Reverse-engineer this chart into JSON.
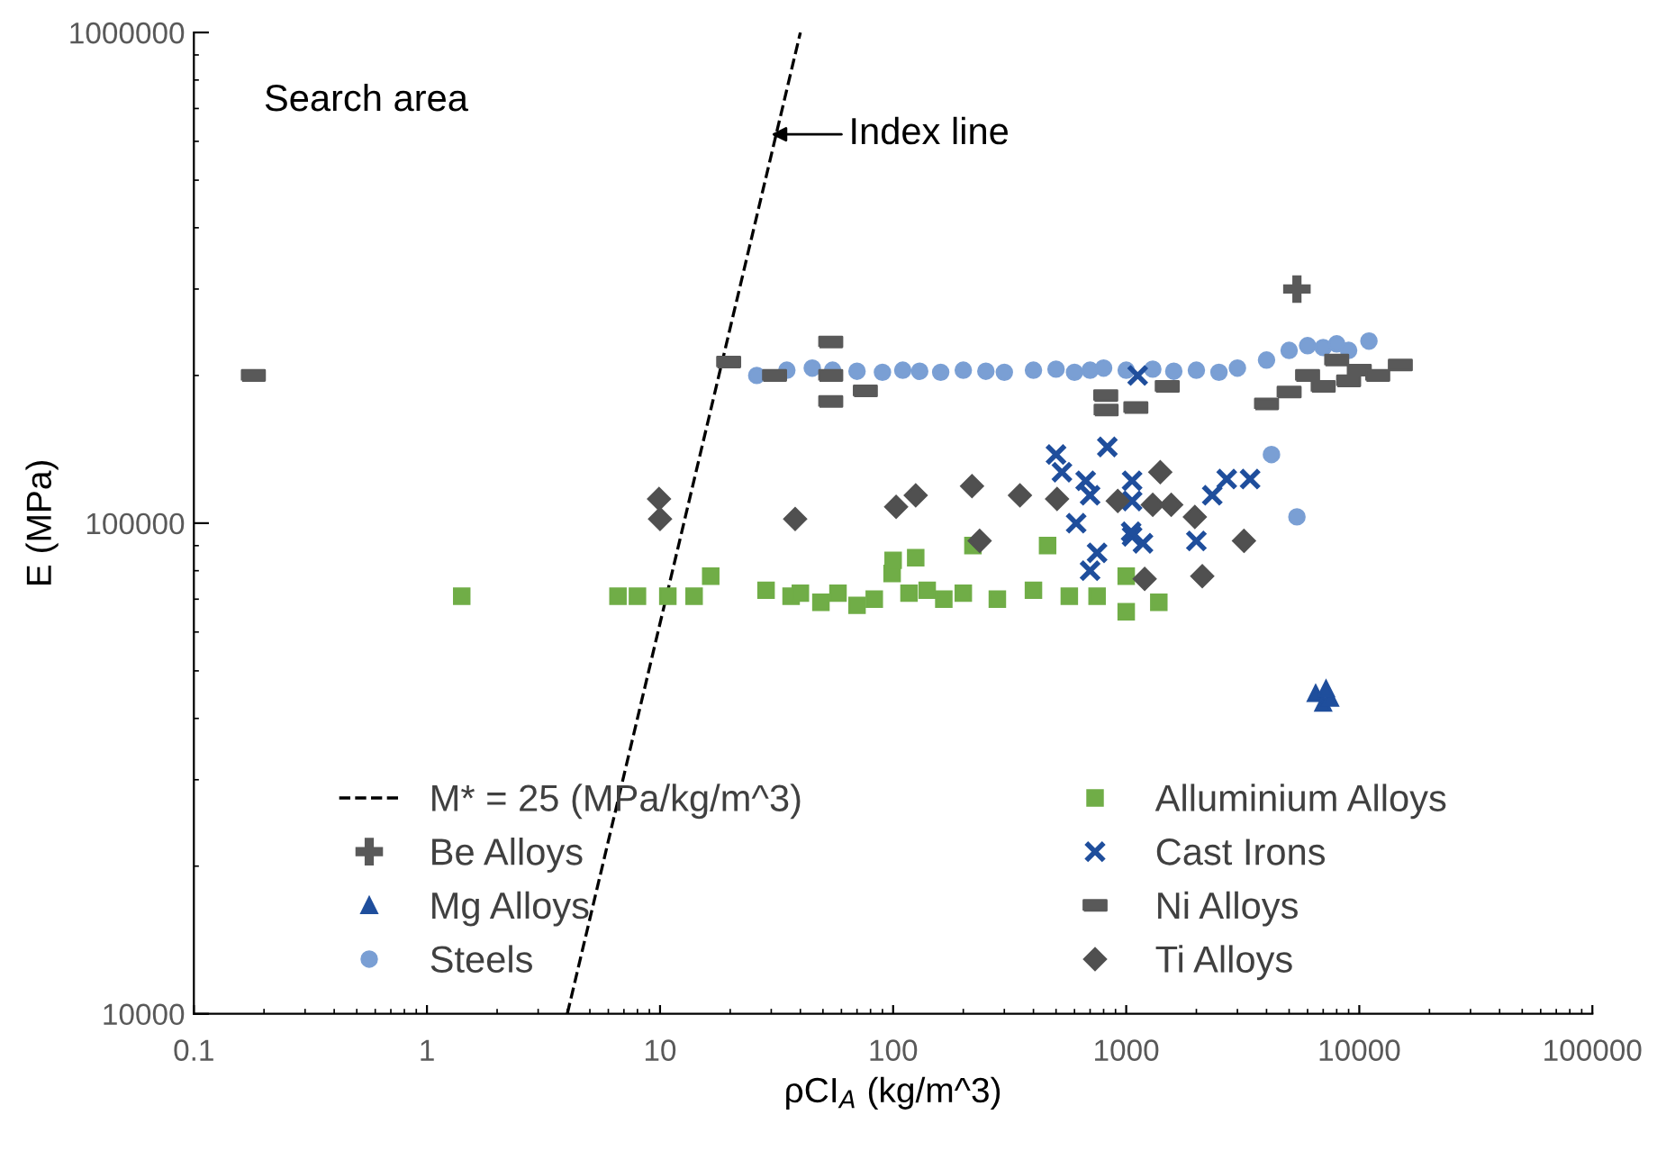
{
  "chart_data": {
    "type": "scatter",
    "xlabel": "ρCI$_{A}$ (kg/m^3)",
    "ylabel": "E (MPa)",
    "log": "xy",
    "xlim": [
      0.1,
      100000
    ],
    "ylim": [
      10000,
      1000000
    ],
    "xticks": [
      0.1,
      1,
      10,
      100,
      1000,
      10000,
      100000
    ],
    "yticks": [
      10000,
      100000,
      1000000
    ],
    "grid": false,
    "legend": "bottom",
    "annotations": [
      "Search area",
      {
        "text": "Index line",
        "x": 30,
        "y": 620000
      }
    ],
    "series": [
      {
        "name": "M* = 25 (MPa/kg/m^3)",
        "type": "line",
        "color": "#000000",
        "line_style": "dashed",
        "marker": "none",
        "x": [
          4,
          40
        ],
        "values": [
          10000,
          1000000
        ]
      },
      {
        "name": "Be Alloys",
        "color": "#595959",
        "marker": "plus",
        "x": [
          5400
        ],
        "values": [
          300000
        ]
      },
      {
        "name": "Mg Alloys",
        "color": "#1f4e9c",
        "marker": "triangle",
        "x": [
          6500,
          7000,
          7500,
          7200
        ],
        "values": [
          45000,
          43000,
          44000,
          46000
        ]
      },
      {
        "name": "Steels",
        "color": "#7a9fd4",
        "marker": "circle",
        "x": [
          26,
          35,
          45,
          55,
          70,
          90,
          110,
          130,
          160,
          200,
          250,
          300,
          400,
          500,
          600,
          700,
          800,
          1000,
          1300,
          1600,
          2000,
          2500,
          3000,
          4000,
          5000,
          6000,
          7000,
          8000,
          9000,
          11000,
          4200,
          5400
        ],
        "values": [
          200000,
          205000,
          207000,
          205000,
          204000,
          203000,
          205000,
          204000,
          203000,
          205000,
          204000,
          203000,
          205000,
          206000,
          203000,
          205000,
          207000,
          205000,
          206000,
          204000,
          205000,
          203000,
          207000,
          215000,
          225000,
          230000,
          228000,
          232000,
          225000,
          235000,
          138000,
          103000
        ]
      },
      {
        "name": "Alluminium Alloys",
        "color": "#70ad47",
        "marker": "square",
        "x": [
          1.41,
          6.6,
          8,
          10.8,
          14,
          16.5,
          28.5,
          36.5,
          40,
          49,
          58,
          70,
          83,
          99,
          100,
          117,
          125,
          140,
          165,
          200,
          220,
          280,
          400,
          460,
          570,
          750,
          1000,
          1000,
          1380
        ],
        "values": [
          71000,
          71000,
          71000,
          71000,
          71000,
          78000,
          73000,
          71000,
          72000,
          69000,
          72000,
          68000,
          70000,
          79000,
          84000,
          72000,
          85000,
          73000,
          70000,
          72000,
          90000,
          70000,
          73000,
          90000,
          71000,
          71000,
          78000,
          66000,
          69000
        ]
      },
      {
        "name": "Cast Irons",
        "color": "#1f4e9c",
        "marker": "cross",
        "x": [
          1120,
          830,
          500,
          530,
          670,
          700,
          1060,
          1060,
          610,
          1060,
          2340,
          2700,
          3400,
          1050,
          1180,
          2000,
          750,
          700
        ],
        "values": [
          200000,
          143000,
          138000,
          127000,
          122000,
          114000,
          122000,
          111000,
          100000,
          94000,
          114000,
          123000,
          123000,
          96000,
          91000,
          92000,
          87000,
          80000
        ]
      },
      {
        "name": "Ni Alloys",
        "color": "#595959",
        "x": [
          0.18,
          19.7,
          31,
          54,
          54,
          54,
          76,
          817,
          820,
          1100,
          1500,
          4000,
          5000,
          6000,
          7000,
          8000,
          9000,
          10000,
          12000,
          15000
        ],
        "values": [
          200000,
          213000,
          200000,
          234000,
          200000,
          177000,
          186000,
          182000,
          170000,
          172000,
          190000,
          175000,
          185000,
          200000,
          190000,
          215000,
          195000,
          205000,
          200000,
          210000
        ]
      },
      {
        "name": "Ti Alloys",
        "color": "#505050",
        "marker": "diamond",
        "x": [
          9.9,
          10,
          38,
          103,
          125,
          218,
          350,
          235,
          505,
          920,
          1300,
          1560,
          1970,
          3200,
          2120,
          1200,
          1400
        ],
        "values": [
          112000,
          102000,
          102000,
          108000,
          114000,
          119000,
          114000,
          92000,
          112000,
          111000,
          109000,
          109000,
          103000,
          92000,
          78000,
          77000,
          127000
        ]
      }
    ]
  }
}
